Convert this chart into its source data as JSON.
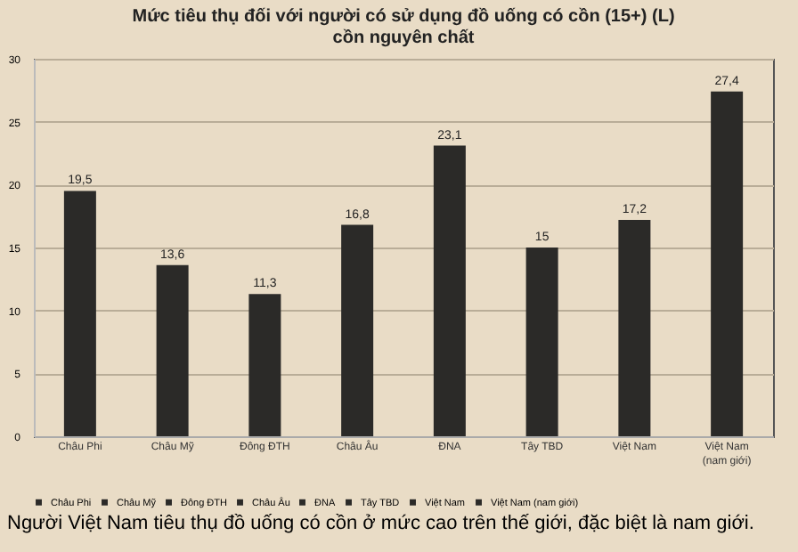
{
  "chart_data": {
    "type": "bar",
    "title": "Mức tiêu thụ đối với người có sử dụng đồ uống có cồn (15+) (L)\ncồn nguyên chất",
    "categories": [
      "Châu Phi",
      "Châu Mỹ",
      "Đông ĐTH",
      "Châu Âu",
      "ĐNA",
      "Tây TBD",
      "Việt Nam",
      "Việt Nam (nam giới)"
    ],
    "series": [
      {
        "name": "Châu Phi",
        "color": "#2b2a28",
        "values": [
          19.5,
          null,
          null,
          null,
          null,
          null,
          null,
          null
        ],
        "value_labels": [
          "19,5",
          null,
          null,
          null,
          null,
          null,
          null,
          null
        ]
      },
      {
        "name": "Châu Mỹ",
        "color": "#2b2a28",
        "values": [
          null,
          13.6,
          null,
          null,
          null,
          null,
          null,
          null
        ],
        "value_labels": [
          null,
          "13,6",
          null,
          null,
          null,
          null,
          null,
          null
        ]
      },
      {
        "name": "Đông ĐTH",
        "color": "#2b2a28",
        "values": [
          null,
          null,
          11.3,
          null,
          null,
          null,
          null,
          null
        ],
        "value_labels": [
          null,
          null,
          "11,3",
          null,
          null,
          null,
          null,
          null
        ]
      },
      {
        "name": "Châu Âu",
        "color": "#2b2a28",
        "values": [
          null,
          null,
          null,
          16.8,
          null,
          null,
          null,
          null
        ],
        "value_labels": [
          null,
          null,
          null,
          "16,8",
          null,
          null,
          null,
          null
        ]
      },
      {
        "name": "ĐNA",
        "color": "#2b2a28",
        "values": [
          null,
          null,
          null,
          null,
          23.1,
          null,
          null,
          null
        ],
        "value_labels": [
          null,
          null,
          null,
          null,
          "23,1",
          null,
          null,
          null
        ]
      },
      {
        "name": "Tây TBD",
        "color": "#2b2a28",
        "values": [
          null,
          null,
          null,
          null,
          null,
          15,
          null,
          null
        ],
        "value_labels": [
          null,
          null,
          null,
          null,
          null,
          "15",
          null,
          null
        ]
      },
      {
        "name": "Việt Nam",
        "color": "#2b2a28",
        "values": [
          null,
          null,
          null,
          null,
          null,
          null,
          17.2,
          null
        ],
        "value_labels": [
          null,
          null,
          null,
          null,
          null,
          null,
          "17,2",
          null
        ]
      },
      {
        "name": "Việt Nam (nam giới)",
        "color": "#2b2a28",
        "values": [
          null,
          null,
          null,
          null,
          null,
          null,
          null,
          27.4
        ],
        "value_labels": [
          null,
          null,
          null,
          null,
          null,
          null,
          null,
          "27,4"
        ]
      }
    ],
    "ylim": [
      0,
      30
    ],
    "yticks": [
      0,
      5,
      10,
      15,
      20,
      25,
      30
    ],
    "grid": "y",
    "legend": "bottom",
    "annotations": [
      "Người Việt Nam tiêu thụ đồ uống có cồn ở mức cao trên thế giới, đặc biệt là nam giới."
    ]
  }
}
